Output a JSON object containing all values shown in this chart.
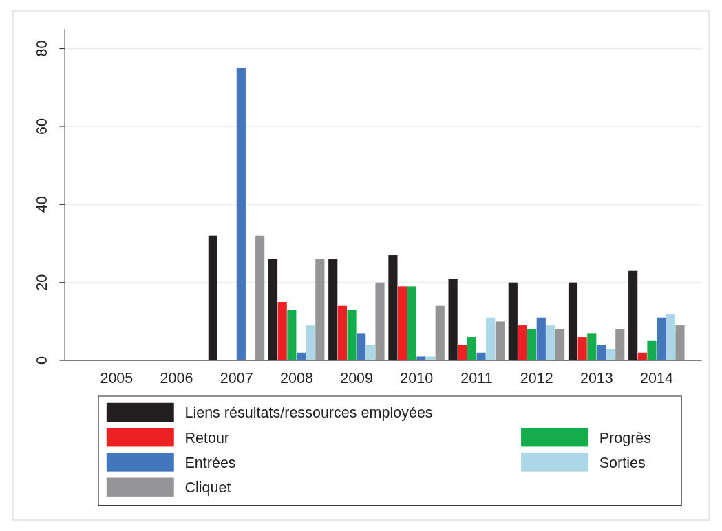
{
  "chart_data": {
    "type": "bar",
    "categories": [
      "2005",
      "2006",
      "2007",
      "2008",
      "2009",
      "2010",
      "2011",
      "2012",
      "2013",
      "2014"
    ],
    "series": [
      {
        "name": "Liens résultats/ressources employées",
        "color": "#231f20",
        "values": [
          null,
          null,
          32,
          26,
          26,
          27,
          21,
          20,
          20,
          23
        ]
      },
      {
        "name": "Retour",
        "color": "#ed2024",
        "values": [
          null,
          null,
          null,
          15,
          14,
          19,
          4,
          9,
          6,
          2
        ]
      },
      {
        "name": "Progrès",
        "color": "#13ae4b",
        "values": [
          null,
          null,
          null,
          13,
          13,
          19,
          6,
          8,
          7,
          5
        ]
      },
      {
        "name": "Entrées",
        "color": "#4377bd",
        "values": [
          null,
          null,
          75,
          2,
          7,
          1,
          2,
          11,
          4,
          11
        ]
      },
      {
        "name": "Sorties",
        "color": "#acd7e6",
        "values": [
          null,
          null,
          null,
          9,
          4,
          1,
          11,
          9,
          3,
          12
        ]
      },
      {
        "name": "Cliquet",
        "color": "#959598",
        "values": [
          null,
          null,
          32,
          26,
          20,
          14,
          10,
          8,
          8,
          9
        ]
      }
    ],
    "ylim": [
      0,
      85
    ],
    "yticks": [
      0,
      20,
      40,
      60,
      80
    ],
    "grid": "y",
    "legend": "bottom"
  }
}
